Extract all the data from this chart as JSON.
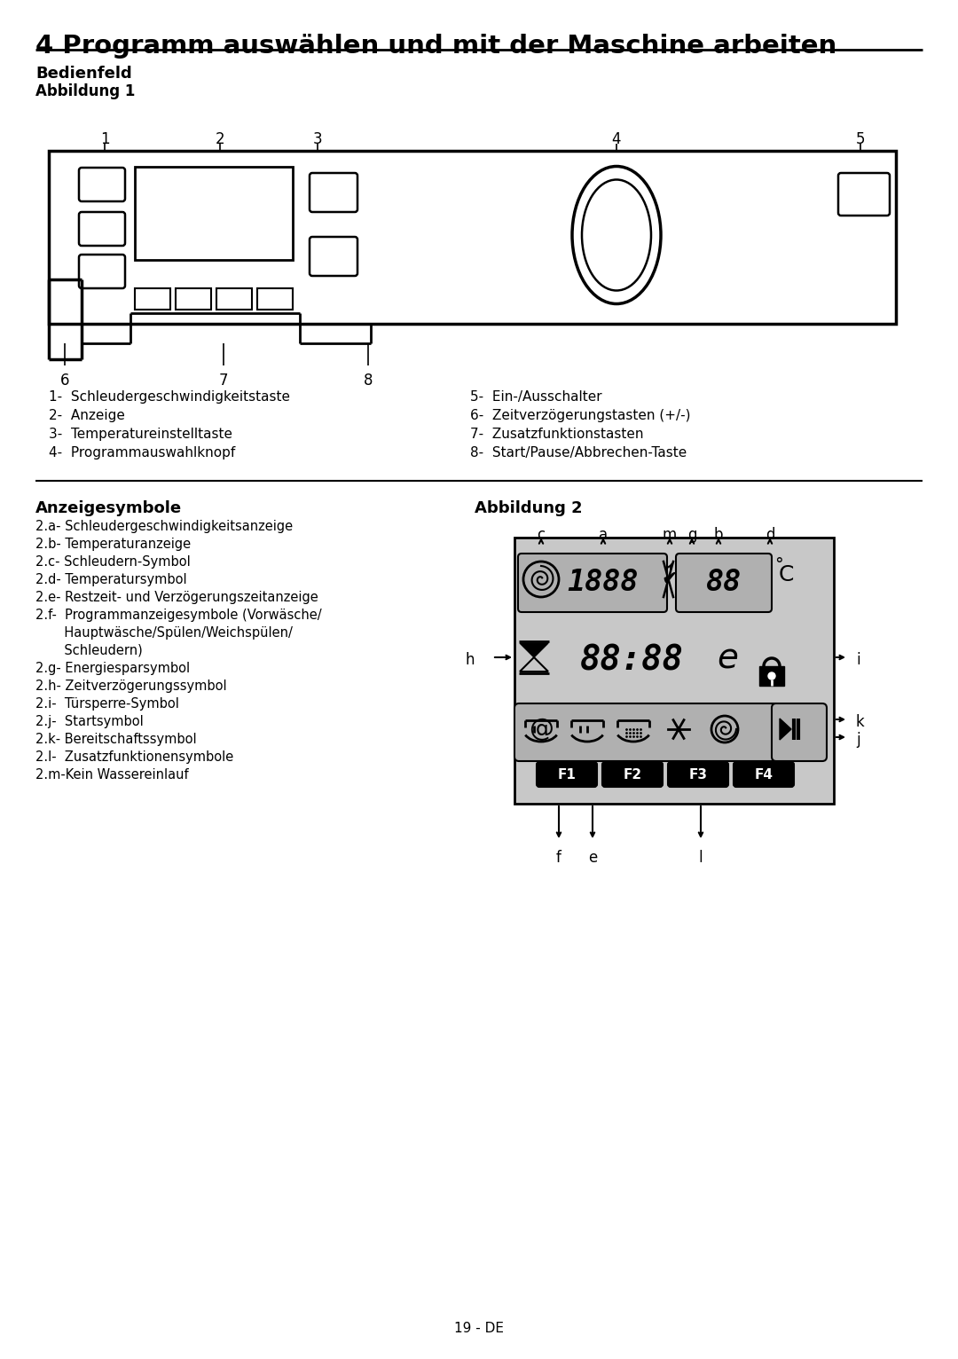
{
  "title": "4 Programm auswählen und mit der Maschine arbeiten",
  "section1_bold": "Bedienfeld",
  "section1_sub": "Abbildung 1",
  "labels_top": [
    "1",
    "2",
    "3",
    "4",
    "5"
  ],
  "labels_bottom": [
    "6",
    "7",
    "8"
  ],
  "legend_left": [
    "1-  Schleudergeschwindigkeitstaste",
    "2-  Anzeige",
    "3-  Temperatureinstelltaste",
    "4-  Programmauswahlknopf"
  ],
  "legend_right": [
    "5-  Ein-/Ausschalter",
    "6-  Zeitverzögerungstasten (+/-)",
    "7-  Zusatzfunktionstasten",
    "8-  Start/Pause/Abbrechen-Taste"
  ],
  "section2_bold": "Anzeigesymbole",
  "section2_fig": "Abbildung 2",
  "anzeigesymbole_lines": [
    "2.a- Schleudergeschwindigkeitsanzeige",
    "2.b- Temperaturanzeige",
    "2.c- Schleudern-Symbol",
    "2.d- Temperatursymbol",
    "2.e- Restzeit- und Verzögerungszeitanzeige",
    "2.f-  Programmanzeigesymbole (Vorwäsche/",
    "       Hauptwäsche/Spülen/Weichspülen/",
    "       Schleudern)",
    "2.g- Energiesparsymbol",
    "2.h- Zeitverzögerungssymbol",
    "2.i-  Türsperre-Symbol",
    "2.j-  Startsymbol",
    "2.k- Bereitschaftssymbol",
    "2.l-  Zusatzfunktionensymbole",
    "2.m-Kein Wassereinlauf"
  ],
  "page_number": "19 - DE",
  "bg_color": "#ffffff",
  "text_color": "#000000"
}
